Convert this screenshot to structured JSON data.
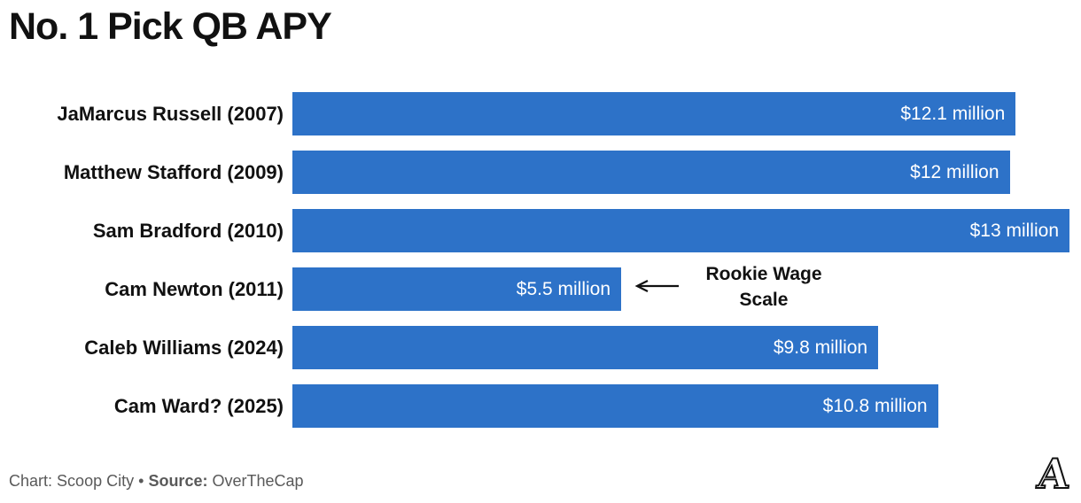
{
  "title": "No. 1 Pick QB APY",
  "chart_data": {
    "type": "bar",
    "orientation": "horizontal",
    "title": "No. 1 Pick QB APY",
    "xlabel": "",
    "ylabel": "",
    "xlim": [
      0,
      13
    ],
    "grid": false,
    "legend": false,
    "bar_color": "#2d72c8",
    "value_label_color": "#ffffff",
    "categories": [
      "JaMarcus Russell (2007)",
      "Matthew Stafford (2009)",
      "Sam Bradford (2010)",
      "Cam Newton (2011)",
      "Caleb Williams (2024)",
      "Cam Ward? (2025)"
    ],
    "values": [
      12.1,
      12,
      13,
      5.5,
      9.8,
      10.8
    ],
    "value_labels": [
      "$12.1 million",
      "$12 million",
      "$13 million",
      "$5.5 million",
      "$9.8 million",
      "$10.8 million"
    ],
    "units": "million USD",
    "annotation": {
      "lines": [
        "Rookie Wage",
        "Scale"
      ],
      "arrow_icon": "left-arrow-icon",
      "target_category": "Cam Newton (2011)"
    }
  },
  "footer": {
    "chart_label": "Chart:",
    "chart_value": "Scoop City",
    "separator": "•",
    "source_label": "Source:",
    "source_value": "OverTheCap",
    "logo_letter": "A",
    "logo_name": "the-athletic-a-logo"
  }
}
